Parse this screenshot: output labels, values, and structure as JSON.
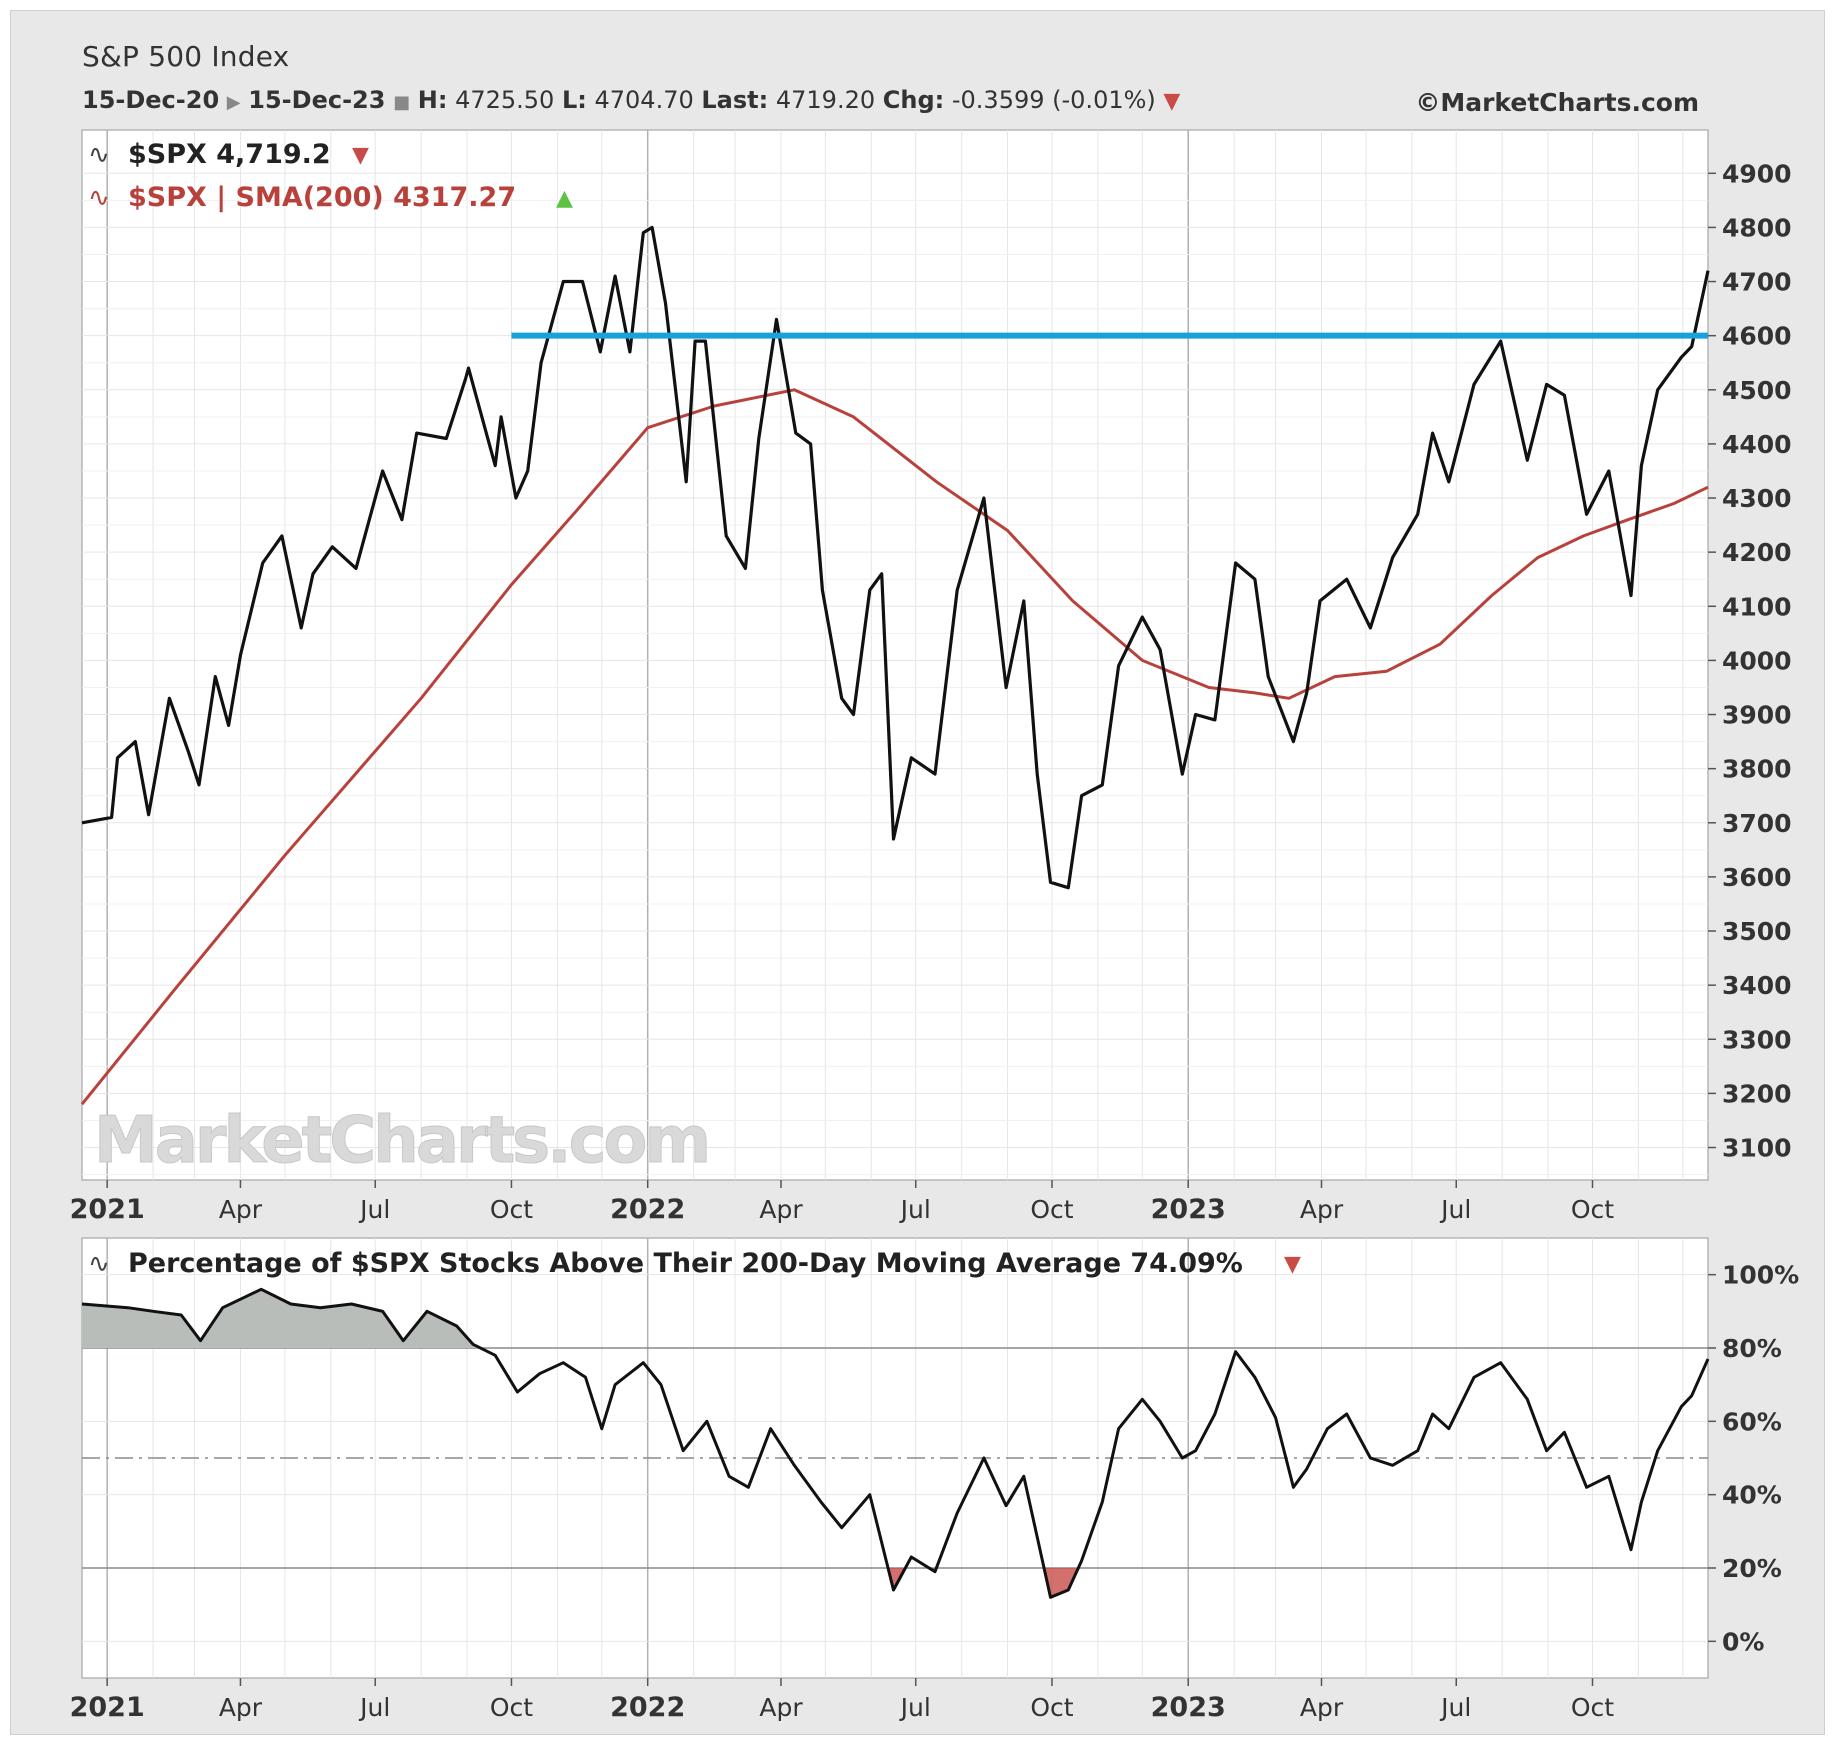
{
  "header": {
    "title": "S&P 500 Index",
    "date_start": "15-Dec-20",
    "date_end": "15-Dec-23",
    "high_label": "H:",
    "high": "4725.50",
    "low_label": "L:",
    "low": "4704.70",
    "last_label": "Last:",
    "last": "4719.20",
    "chg_label": "Chg:",
    "chg": "-0.3599 (-0.01%)",
    "copyright": "©MarketCharts.com"
  },
  "watermark": "MarketCharts.com",
  "colors": {
    "price": "#111111",
    "sma": "#b8413c",
    "resistance": "#1aa0db",
    "breadth": "#111111",
    "breadth_fill": "#b9bdb9",
    "down_triangle": "#c84b47",
    "up_triangle": "#5cc246"
  },
  "chart_data": [
    {
      "type": "line",
      "legend": [
        {
          "text": "$SPX 4,719.2",
          "trend": "down"
        },
        {
          "text": "$SPX | SMA(200) 4317.27",
          "trend": "up"
        }
      ],
      "x_ticks": [
        "2021",
        "Apr",
        "Jul",
        "Oct",
        "2022",
        "Apr",
        "Jul",
        "Oct",
        "2023",
        "Apr",
        "Jul",
        "Oct"
      ],
      "y_ticks": [
        "4900",
        "4800",
        "4700",
        "4600",
        "4500",
        "4400",
        "4300",
        "4200",
        "4100",
        "4000",
        "3900",
        "3800",
        "3700",
        "3600",
        "3500",
        "3400",
        "3300",
        "3200",
        "3100"
      ],
      "ylim": [
        3040,
        4980
      ],
      "xlim": [
        "2020-12-15",
        "2023-12-18"
      ],
      "resistance": {
        "value": 4600,
        "x_start": "2021-10-01",
        "x_end": "2023-12-18"
      },
      "series": [
        {
          "name": "$SPX",
          "points": [
            [
              "2020-12-15",
              3700
            ],
            [
              "2021-01-04",
              3710
            ],
            [
              "2021-01-08",
              3820
            ],
            [
              "2021-01-20",
              3850
            ],
            [
              "2021-01-29",
              3715
            ],
            [
              "2021-02-12",
              3930
            ],
            [
              "2021-02-25",
              3830
            ],
            [
              "2021-03-04",
              3770
            ],
            [
              "2021-03-15",
              3970
            ],
            [
              "2021-03-24",
              3880
            ],
            [
              "2021-04-01",
              4010
            ],
            [
              "2021-04-16",
              4180
            ],
            [
              "2021-04-29",
              4230
            ],
            [
              "2021-05-12",
              4060
            ],
            [
              "2021-05-20",
              4160
            ],
            [
              "2021-06-02",
              4210
            ],
            [
              "2021-06-18",
              4170
            ],
            [
              "2021-07-06",
              4350
            ],
            [
              "2021-07-19",
              4260
            ],
            [
              "2021-07-29",
              4420
            ],
            [
              "2021-08-18",
              4410
            ],
            [
              "2021-08-31",
              4520
            ],
            [
              "2021-09-02",
              4540
            ],
            [
              "2021-09-20",
              4360
            ],
            [
              "2021-09-24",
              4450
            ],
            [
              "2021-10-04",
              4300
            ],
            [
              "2021-10-12",
              4350
            ],
            [
              "2021-10-21",
              4550
            ],
            [
              "2021-11-05",
              4700
            ],
            [
              "2021-11-18",
              4700
            ],
            [
              "2021-11-30",
              4570
            ],
            [
              "2021-12-10",
              4710
            ],
            [
              "2021-12-20",
              4570
            ],
            [
              "2021-12-29",
              4790
            ],
            [
              "2022-01-04",
              4800
            ],
            [
              "2022-01-13",
              4660
            ],
            [
              "2022-01-27",
              4330
            ],
            [
              "2022-02-02",
              4590
            ],
            [
              "2022-02-09",
              4590
            ],
            [
              "2022-02-23",
              4230
            ],
            [
              "2022-03-08",
              4170
            ],
            [
              "2022-03-17",
              4410
            ],
            [
              "2022-03-29",
              4630
            ],
            [
              "2022-04-11",
              4420
            ],
            [
              "2022-04-21",
              4400
            ],
            [
              "2022-04-29",
              4130
            ],
            [
              "2022-05-12",
              3930
            ],
            [
              "2022-05-20",
              3900
            ],
            [
              "2022-05-31",
              4130
            ],
            [
              "2022-06-08",
              4160
            ],
            [
              "2022-06-16",
              3670
            ],
            [
              "2022-06-28",
              3820
            ],
            [
              "2022-07-14",
              3790
            ],
            [
              "2022-07-29",
              4130
            ],
            [
              "2022-08-16",
              4300
            ],
            [
              "2022-08-31",
              3950
            ],
            [
              "2022-09-12",
              4110
            ],
            [
              "2022-09-21",
              3790
            ],
            [
              "2022-09-30",
              3590
            ],
            [
              "2022-10-12",
              3580
            ],
            [
              "2022-10-21",
              3750
            ],
            [
              "2022-11-04",
              3770
            ],
            [
              "2022-11-15",
              3990
            ],
            [
              "2022-12-01",
              4080
            ],
            [
              "2022-12-13",
              4020
            ],
            [
              "2022-12-28",
              3790
            ],
            [
              "2023-01-06",
              3900
            ],
            [
              "2023-01-19",
              3890
            ],
            [
              "2023-02-02",
              4180
            ],
            [
              "2023-02-15",
              4150
            ],
            [
              "2023-02-24",
              3970
            ],
            [
              "2023-03-13",
              3850
            ],
            [
              "2023-03-22",
              3940
            ],
            [
              "2023-03-31",
              4110
            ],
            [
              "2023-04-18",
              4150
            ],
            [
              "2023-05-04",
              4060
            ],
            [
              "2023-05-19",
              4190
            ],
            [
              "2023-06-05",
              4270
            ],
            [
              "2023-06-15",
              4420
            ],
            [
              "2023-06-26",
              4330
            ],
            [
              "2023-07-13",
              4510
            ],
            [
              "2023-07-31",
              4590
            ],
            [
              "2023-08-18",
              4370
            ],
            [
              "2023-08-31",
              4510
            ],
            [
              "2023-09-12",
              4490
            ],
            [
              "2023-09-27",
              4270
            ],
            [
              "2023-10-12",
              4350
            ],
            [
              "2023-10-27",
              4120
            ],
            [
              "2023-11-03",
              4360
            ],
            [
              "2023-11-14",
              4500
            ],
            [
              "2023-11-30",
              4560
            ],
            [
              "2023-12-07",
              4580
            ],
            [
              "2023-12-18",
              4720
            ]
          ]
        },
        {
          "name": "$SPX | SMA(200)",
          "points": [
            [
              "2020-12-15",
              3180
            ],
            [
              "2021-02-15",
              3390
            ],
            [
              "2021-05-01",
              3640
            ],
            [
              "2021-08-01",
              3930
            ],
            [
              "2021-10-01",
              4140
            ],
            [
              "2021-11-15",
              4280
            ],
            [
              "2022-01-01",
              4430
            ],
            [
              "2022-02-15",
              4470
            ],
            [
              "2022-04-10",
              4500
            ],
            [
              "2022-05-20",
              4450
            ],
            [
              "2022-07-15",
              4330
            ],
            [
              "2022-09-01",
              4240
            ],
            [
              "2022-10-15",
              4110
            ],
            [
              "2022-12-01",
              4000
            ],
            [
              "2023-01-15",
              3950
            ],
            [
              "2023-02-15",
              3940
            ],
            [
              "2023-03-10",
              3930
            ],
            [
              "2023-04-10",
              3970
            ],
            [
              "2023-05-15",
              3980
            ],
            [
              "2023-06-20",
              4030
            ],
            [
              "2023-07-25",
              4120
            ],
            [
              "2023-08-25",
              4190
            ],
            [
              "2023-09-25",
              4230
            ],
            [
              "2023-10-25",
              4260
            ],
            [
              "2023-11-25",
              4290
            ],
            [
              "2023-12-18",
              4320
            ]
          ]
        }
      ]
    },
    {
      "type": "area",
      "title": "Percentage of $SPX Stocks Above Their 200-Day Moving Average 74.09%",
      "trend": "down",
      "x_ticks": [
        "2021",
        "Apr",
        "Jul",
        "Oct",
        "2022",
        "Apr",
        "Jul",
        "Oct",
        "2023",
        "Apr",
        "Jul",
        "Oct"
      ],
      "y_ticks": [
        "100%",
        "80%",
        "60%",
        "40%",
        "20%",
        "0%"
      ],
      "ylim": [
        -10,
        110
      ],
      "reference_lines": [
        80,
        50,
        20
      ],
      "fill_above": 80,
      "fill_below": 20,
      "series": [
        {
          "name": "Percentage of $SPX Stocks Above Their 200-Day Moving Average",
          "points": [
            [
              "2020-12-15",
              92
            ],
            [
              "2021-01-15",
              91
            ],
            [
              "2021-02-01",
              90
            ],
            [
              "2021-02-20",
              89
            ],
            [
              "2021-03-05",
              82
            ],
            [
              "2021-03-20",
              91
            ],
            [
              "2021-04-15",
              96
            ],
            [
              "2021-05-05",
              92
            ],
            [
              "2021-05-25",
              91
            ],
            [
              "2021-06-15",
              92
            ],
            [
              "2021-07-06",
              90
            ],
            [
              "2021-07-20",
              82
            ],
            [
              "2021-08-05",
              90
            ],
            [
              "2021-08-25",
              86
            ],
            [
              "2021-09-05",
              81
            ],
            [
              "2021-09-20",
              78
            ],
            [
              "2021-10-05",
              68
            ],
            [
              "2021-10-20",
              73
            ],
            [
              "2021-11-05",
              76
            ],
            [
              "2021-11-20",
              72
            ],
            [
              "2021-12-01",
              58
            ],
            [
              "2021-12-10",
              70
            ],
            [
              "2021-12-29",
              76
            ],
            [
              "2022-01-10",
              70
            ],
            [
              "2022-01-25",
              52
            ],
            [
              "2022-02-10",
              60
            ],
            [
              "2022-02-25",
              45
            ],
            [
              "2022-03-10",
              42
            ],
            [
              "2022-03-25",
              58
            ],
            [
              "2022-04-10",
              48
            ],
            [
              "2022-04-28",
              38
            ],
            [
              "2022-05-12",
              31
            ],
            [
              "2022-05-31",
              40
            ],
            [
              "2022-06-16",
              14
            ],
            [
              "2022-06-28",
              23
            ],
            [
              "2022-07-14",
              19
            ],
            [
              "2022-07-29",
              35
            ],
            [
              "2022-08-16",
              50
            ],
            [
              "2022-08-31",
              37
            ],
            [
              "2022-09-12",
              45
            ],
            [
              "2022-09-30",
              12
            ],
            [
              "2022-10-12",
              14
            ],
            [
              "2022-10-21",
              22
            ],
            [
              "2022-11-04",
              38
            ],
            [
              "2022-11-15",
              58
            ],
            [
              "2022-12-01",
              66
            ],
            [
              "2022-12-13",
              60
            ],
            [
              "2022-12-28",
              50
            ],
            [
              "2023-01-06",
              52
            ],
            [
              "2023-01-19",
              62
            ],
            [
              "2023-02-02",
              79
            ],
            [
              "2023-02-15",
              72
            ],
            [
              "2023-03-01",
              61
            ],
            [
              "2023-03-13",
              42
            ],
            [
              "2023-03-22",
              47
            ],
            [
              "2023-04-05",
              58
            ],
            [
              "2023-04-18",
              62
            ],
            [
              "2023-05-04",
              50
            ],
            [
              "2023-05-19",
              48
            ],
            [
              "2023-06-05",
              52
            ],
            [
              "2023-06-15",
              62
            ],
            [
              "2023-06-26",
              58
            ],
            [
              "2023-07-13",
              72
            ],
            [
              "2023-07-31",
              76
            ],
            [
              "2023-08-18",
              66
            ],
            [
              "2023-08-31",
              52
            ],
            [
              "2023-09-12",
              57
            ],
            [
              "2023-09-27",
              42
            ],
            [
              "2023-10-12",
              45
            ],
            [
              "2023-10-27",
              25
            ],
            [
              "2023-11-03",
              38
            ],
            [
              "2023-11-14",
              52
            ],
            [
              "2023-11-30",
              64
            ],
            [
              "2023-12-07",
              67
            ],
            [
              "2023-12-18",
              77
            ]
          ]
        }
      ]
    }
  ]
}
